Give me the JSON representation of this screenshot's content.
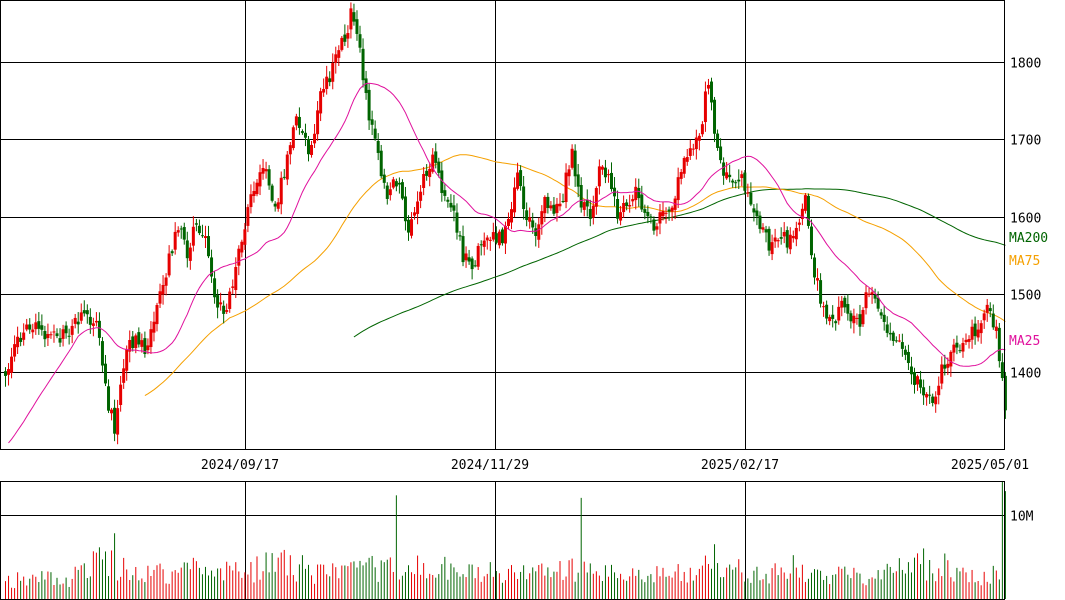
{
  "chart_data": {
    "type": "candlestick",
    "title": "",
    "price_axis": {
      "ticks": [
        1400,
        1500,
        1600,
        1700,
        1800
      ],
      "range": [
        1300,
        1880
      ],
      "position": "right"
    },
    "date_axis": {
      "ticks": [
        "2024/09/17",
        "2024/11/29",
        "2025/02/17",
        "2025/05/01"
      ]
    },
    "volume_axis": {
      "ticks": [
        "10M"
      ],
      "tick_values": [
        10000000
      ],
      "range": [
        0,
        14000000
      ]
    },
    "colors": {
      "up": "#e60000",
      "down": "#006400",
      "ma25": "#e0119d",
      "ma75": "#f5a000",
      "ma200": "#006400"
    },
    "moving_averages": [
      {
        "name": "MA200",
        "color": "#006400",
        "label_value": 1572
      },
      {
        "name": "MA75",
        "color": "#f5a000",
        "label_value": 1540
      },
      {
        "name": "MA25",
        "color": "#e0119d",
        "label_value": 1440
      }
    ],
    "close_anchors": [
      [
        0,
        1400
      ],
      [
        3,
        1440
      ],
      [
        8,
        1460
      ],
      [
        14,
        1440
      ],
      [
        20,
        1445
      ],
      [
        25,
        1470
      ],
      [
        30,
        1462
      ],
      [
        33,
        1380
      ],
      [
        36,
        1320
      ],
      [
        39,
        1415
      ],
      [
        42,
        1440
      ],
      [
        46,
        1430
      ],
      [
        50,
        1480
      ],
      [
        54,
        1548
      ],
      [
        57,
        1590
      ],
      [
        60,
        1550
      ],
      [
        63,
        1590
      ],
      [
        66,
        1565
      ],
      [
        69,
        1500
      ],
      [
        72,
        1470
      ],
      [
        75,
        1520
      ],
      [
        78,
        1570
      ],
      [
        82,
        1640
      ],
      [
        86,
        1660
      ],
      [
        89,
        1610
      ],
      [
        92,
        1660
      ],
      [
        96,
        1730
      ],
      [
        100,
        1680
      ],
      [
        104,
        1755
      ],
      [
        108,
        1792
      ],
      [
        111,
        1825
      ],
      [
        114,
        1860
      ],
      [
        117,
        1810
      ],
      [
        120,
        1725
      ],
      [
        123,
        1680
      ],
      [
        126,
        1630
      ],
      [
        130,
        1645
      ],
      [
        133,
        1575
      ],
      [
        136,
        1620
      ],
      [
        139,
        1660
      ],
      [
        142,
        1680
      ],
      [
        145,
        1620
      ],
      [
        148,
        1600
      ],
      [
        151,
        1550
      ],
      [
        154,
        1540
      ],
      [
        157,
        1560
      ],
      [
        160,
        1580
      ],
      [
        163,
        1570
      ],
      [
        166,
        1590
      ],
      [
        169,
        1650
      ],
      [
        172,
        1600
      ],
      [
        175,
        1570
      ],
      [
        178,
        1620
      ],
      [
        181,
        1600
      ],
      [
        184,
        1630
      ],
      [
        187,
        1680
      ],
      [
        190,
        1620
      ],
      [
        193,
        1600
      ],
      [
        196,
        1660
      ],
      [
        199,
        1650
      ],
      [
        202,
        1600
      ],
      [
        205,
        1620
      ],
      [
        208,
        1630
      ],
      [
        211,
        1610
      ],
      [
        214,
        1590
      ],
      [
        217,
        1600
      ],
      [
        220,
        1620
      ],
      [
        223,
        1660
      ],
      [
        226,
        1690
      ],
      [
        229,
        1700
      ],
      [
        232,
        1780
      ],
      [
        234,
        1700
      ],
      [
        237,
        1660
      ],
      [
        240,
        1640
      ],
      [
        243,
        1660
      ],
      [
        246,
        1610
      ],
      [
        249,
        1590
      ],
      [
        252,
        1560
      ],
      [
        255,
        1580
      ],
      [
        258,
        1570
      ],
      [
        261,
        1590
      ],
      [
        264,
        1620
      ],
      [
        267,
        1530
      ],
      [
        270,
        1480
      ],
      [
        273,
        1460
      ],
      [
        276,
        1490
      ],
      [
        279,
        1470
      ],
      [
        282,
        1460
      ],
      [
        285,
        1510
      ],
      [
        288,
        1480
      ],
      [
        291,
        1440
      ],
      [
        294,
        1450
      ],
      [
        297,
        1420
      ],
      [
        300,
        1390
      ],
      [
        303,
        1380
      ],
      [
        306,
        1350
      ],
      [
        309,
        1400
      ],
      [
        312,
        1430
      ],
      [
        315,
        1420
      ],
      [
        318,
        1450
      ],
      [
        321,
        1460
      ],
      [
        324,
        1480
      ],
      [
        327,
        1455
      ],
      [
        330,
        1360
      ]
    ],
    "volume_anchors": [
      [
        0,
        2.2
      ],
      [
        10,
        2.5
      ],
      [
        20,
        2.0
      ],
      [
        30,
        4.5
      ],
      [
        40,
        3.5
      ],
      [
        50,
        3.0
      ],
      [
        60,
        3.6
      ],
      [
        70,
        3.8
      ],
      [
        80,
        3.2
      ],
      [
        90,
        4.5
      ],
      [
        100,
        3.0
      ],
      [
        110,
        3.0
      ],
      [
        120,
        3.5
      ],
      [
        130,
        4.0
      ],
      [
        140,
        3.3
      ],
      [
        150,
        3.0
      ],
      [
        160,
        3.2
      ],
      [
        170,
        3.0
      ],
      [
        180,
        3.2
      ],
      [
        190,
        3.5
      ],
      [
        200,
        2.8
      ],
      [
        210,
        2.6
      ],
      [
        220,
        3.0
      ],
      [
        230,
        3.8
      ],
      [
        240,
        3.3
      ],
      [
        250,
        3.1
      ],
      [
        260,
        2.9
      ],
      [
        270,
        2.8
      ],
      [
        280,
        2.8
      ],
      [
        290,
        3.2
      ],
      [
        300,
        4.0
      ],
      [
        310,
        3.3
      ],
      [
        320,
        2.8
      ],
      [
        330,
        3.0
      ]
    ],
    "volume_spikes": [
      [
        30,
        5.5
      ],
      [
        36,
        7.8
      ],
      [
        98,
        5.2
      ],
      [
        129,
        12.3
      ],
      [
        145,
        5.0
      ],
      [
        190,
        12.0
      ],
      [
        234,
        6.5
      ],
      [
        260,
        5.2
      ],
      [
        303,
        6.0
      ],
      [
        310,
        5.4
      ],
      [
        329,
        14.0
      ],
      [
        330,
        12.8
      ]
    ]
  }
}
